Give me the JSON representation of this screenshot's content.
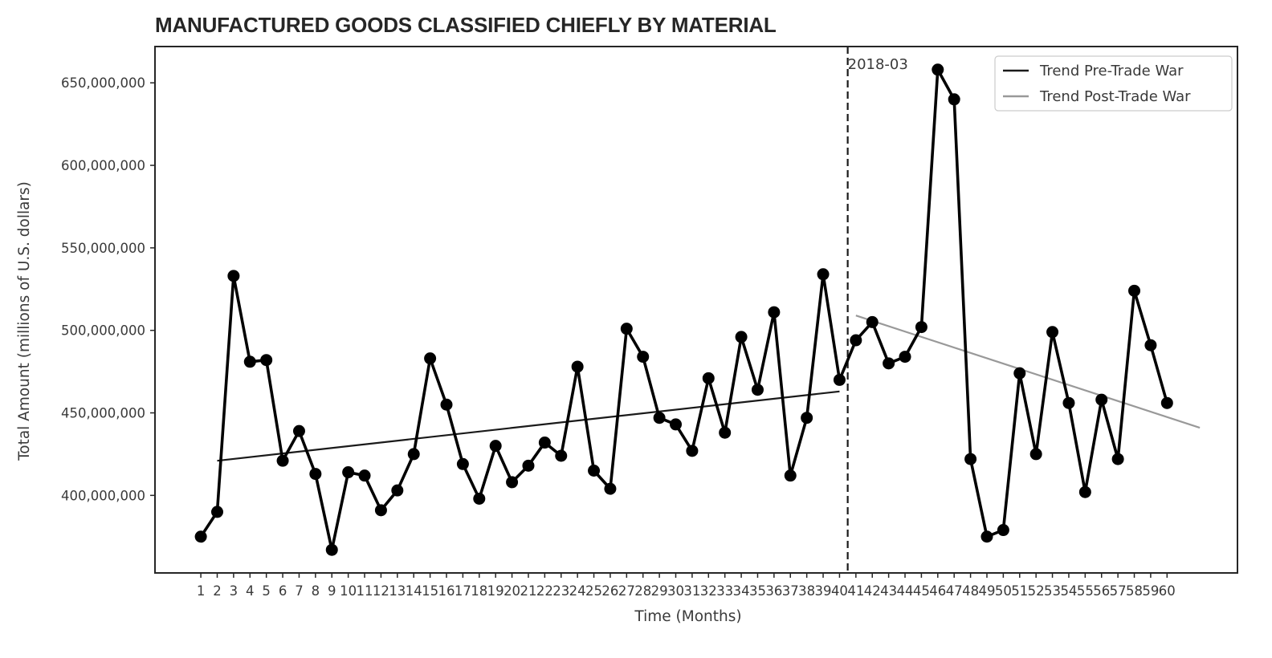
{
  "chart_data": {
    "type": "line",
    "title": "MANUFACTURED GOODS CLASSIFIED CHIEFLY BY MATERIAL",
    "xlabel": "Time (Months)",
    "ylabel": "Total Amount (millions of U.S. dollars)",
    "x": [
      1,
      2,
      3,
      4,
      5,
      6,
      7,
      8,
      9,
      10,
      11,
      12,
      13,
      14,
      15,
      16,
      17,
      18,
      19,
      20,
      21,
      22,
      23,
      24,
      25,
      26,
      27,
      28,
      29,
      30,
      31,
      32,
      33,
      34,
      35,
      36,
      37,
      38,
      39,
      40,
      41,
      42,
      43,
      44,
      45,
      46,
      47,
      48,
      49,
      50,
      51,
      52,
      53,
      54,
      55,
      56,
      57,
      58,
      59,
      60
    ],
    "x_tick_labels": [
      "1",
      "2",
      "3",
      "4",
      "5",
      "6",
      "7",
      "8",
      "9",
      "10",
      "11",
      "12",
      "13",
      "14",
      "15",
      "16",
      "17",
      "18",
      "19",
      "20",
      "21",
      "22",
      "23",
      "24",
      "25",
      "26",
      "27",
      "28",
      "29",
      "30",
      "31",
      "32",
      "33",
      "34",
      "35",
      "36",
      "37",
      "38",
      "39",
      "40",
      "41",
      "42",
      "43",
      "44",
      "45",
      "46",
      "47",
      "48",
      "49",
      "50",
      "51",
      "52",
      "53",
      "54",
      "55",
      "56",
      "57",
      "58",
      "59",
      "60"
    ],
    "xlim": [
      -1.8,
      64.3
    ],
    "ylim": [
      353000000,
      672000000
    ],
    "y_ticks": [
      400000000,
      450000000,
      500000000,
      550000000,
      600000000,
      650000000
    ],
    "y_tick_labels": [
      "400,000,000",
      "450,000,000",
      "500,000,000",
      "550,000,000",
      "600,000,000",
      "650,000,000"
    ],
    "series": [
      {
        "type": "line-markers",
        "color": "#000000",
        "values": [
          375000000,
          390000000,
          533000000,
          481000000,
          482000000,
          421000000,
          439000000,
          413000000,
          367000000,
          414000000,
          412000000,
          391000000,
          403000000,
          425000000,
          483000000,
          455000000,
          419000000,
          398000000,
          430000000,
          408000000,
          418000000,
          432000000,
          424000000,
          478000000,
          415000000,
          404000000,
          501000000,
          484000000,
          447000000,
          443000000,
          427000000,
          471000000,
          438000000,
          496000000,
          464000000,
          511000000,
          412000000,
          447000000,
          534000000,
          470000000,
          494000000,
          505000000,
          480000000,
          484000000,
          502000000,
          658000000,
          640000000,
          422000000,
          375000000,
          379000000,
          474000000,
          425000000,
          499000000,
          456000000,
          402000000,
          458000000,
          422000000,
          524000000,
          491000000,
          456000000
        ]
      }
    ],
    "trend_lines": [
      {
        "name": "Trend Pre-Trade War",
        "color": "#1a1a1a",
        "x": [
          2,
          40
        ],
        "y": [
          421000000,
          463000000
        ]
      },
      {
        "name": "Trend Post-Trade War",
        "color": "#999999",
        "x": [
          41,
          62
        ],
        "y": [
          509000000,
          441000000
        ]
      }
    ],
    "vline": {
      "x": 40.5,
      "label": "2018-03",
      "style": "dashed"
    },
    "legend": {
      "position": "top-right",
      "entries": [
        "Trend Pre-Trade War",
        "Trend Post-Trade War"
      ]
    },
    "grid": false
  }
}
